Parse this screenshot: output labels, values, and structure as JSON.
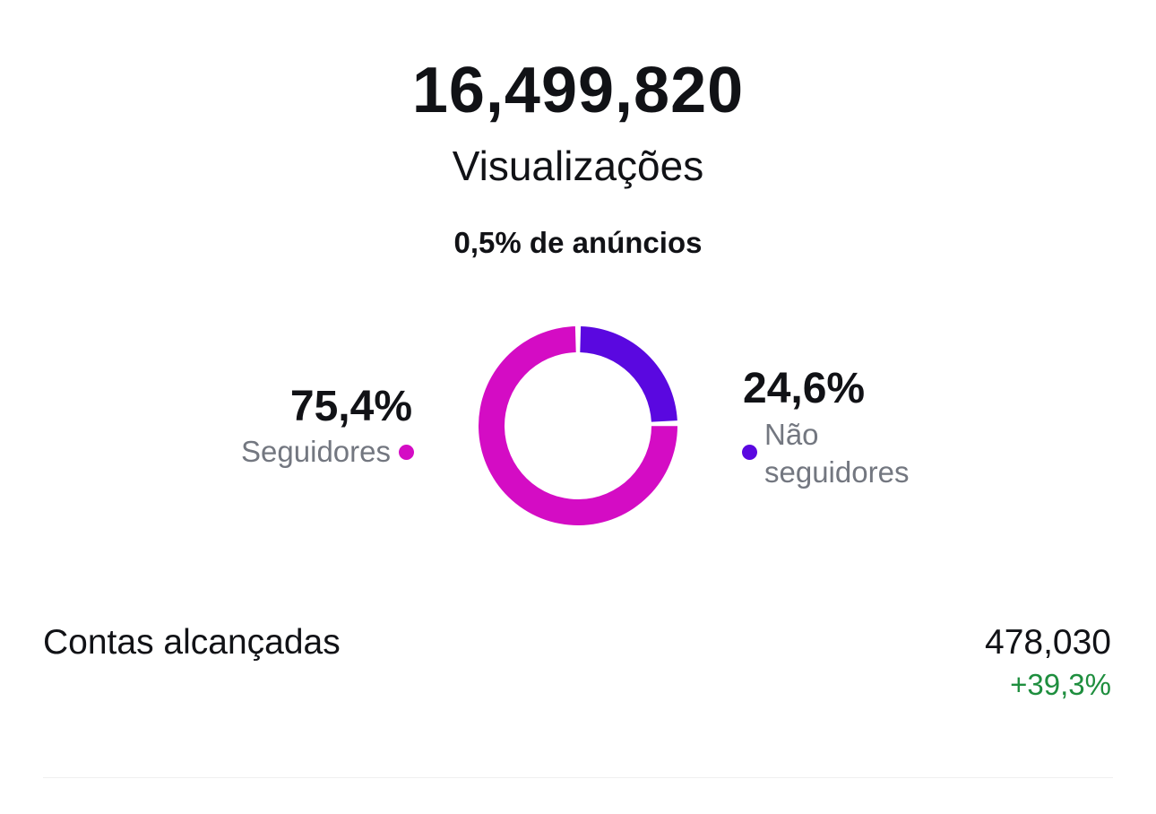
{
  "summary": {
    "total_views": "16,499,820",
    "total_label": "Visualizações",
    "ads_share": "0,5% de anúncios"
  },
  "breakdown": {
    "followers": {
      "percent_label": "75,4%",
      "label": "Seguidores",
      "value": 75.4,
      "color": "#d40cc4"
    },
    "non_followers": {
      "percent_label": "24,6%",
      "label": "Não seguidores",
      "value": 24.6,
      "color": "#5a08e0"
    }
  },
  "metrics": {
    "accounts_reached": {
      "label": "Contas alcançadas",
      "value": "478,030",
      "change": "+39,3%",
      "change_color": "#1e8e3e"
    }
  }
}
